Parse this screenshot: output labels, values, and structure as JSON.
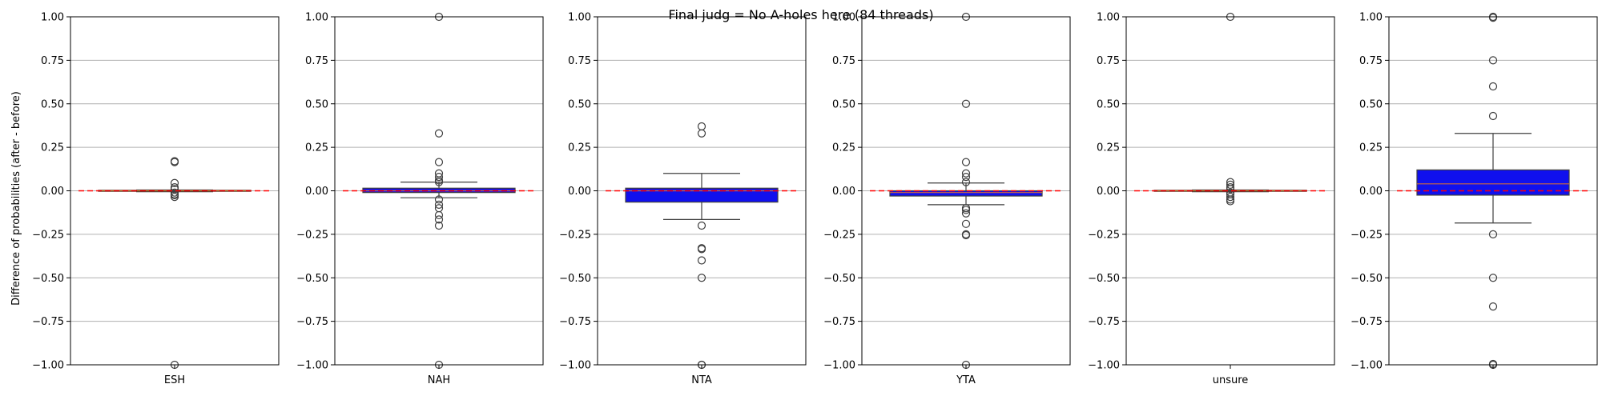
{
  "chart_data": {
    "type": "box",
    "title": "Final judg = No A-holes here (84 threads)",
    "ylabel": "Difference of probabilities (after - before)",
    "ylim": [
      -1,
      1
    ],
    "yticks": [
      -1,
      -0.75,
      -0.5,
      -0.25,
      0,
      0.25,
      0.5,
      0.75,
      1
    ],
    "ytick_labels": [
      "−1.00",
      "−0.75",
      "−0.50",
      "−0.25",
      "0.00",
      "0.25",
      "0.50",
      "0.75",
      "1.00"
    ],
    "grid": "horizontal",
    "reference_line": {
      "y": 0,
      "style": "dashed",
      "color": "#ff0000"
    },
    "box_color": "#1010ee",
    "median_color": "#ff7f0e",
    "panels": [
      {
        "category": "ESH",
        "q1": -0.003,
        "median": 0,
        "q3": 0.003,
        "whisker_low": -0.005,
        "whisker_high": 0.005,
        "outliers": [
          0.17,
          0.165,
          0.045,
          0.02,
          0.01,
          -0.01,
          -0.02,
          -0.025,
          -0.035,
          -1.0
        ]
      },
      {
        "category": "NAH",
        "q1": -0.01,
        "median": 0,
        "q3": 0.015,
        "whisker_low": -0.04,
        "whisker_high": 0.05,
        "outliers": [
          1.0,
          0.33,
          0.165,
          0.1,
          0.08,
          0.06,
          0.05,
          -0.05,
          -0.08,
          -0.1,
          -0.14,
          -0.165,
          -0.2,
          -1.0
        ]
      },
      {
        "category": "NTA",
        "q1": -0.065,
        "median": 0,
        "q3": 0.015,
        "whisker_low": -0.165,
        "whisker_high": 0.1,
        "outliers": [
          0.37,
          0.33,
          -0.2,
          -0.33,
          -0.335,
          -0.4,
          -0.5,
          -1.0,
          -1.0
        ]
      },
      {
        "category": "YTA",
        "q1": -0.03,
        "median": -0.01,
        "q3": 0.0,
        "whisker_low": -0.08,
        "whisker_high": 0.045,
        "outliers": [
          1.0,
          0.5,
          0.165,
          0.1,
          0.08,
          0.05,
          -0.1,
          -0.11,
          -0.13,
          -0.19,
          -0.25,
          -0.255,
          -1.0
        ]
      },
      {
        "category": "unsure",
        "q1": -0.003,
        "median": 0,
        "q3": 0.003,
        "whisker_low": -0.005,
        "whisker_high": 0.005,
        "outliers": [
          1.0,
          0.05,
          0.035,
          0.02,
          0.01,
          -0.01,
          -0.02,
          -0.035,
          -0.05,
          -0.06
        ]
      },
      {
        "category": "",
        "q1": -0.025,
        "median": 0.04,
        "q3": 0.12,
        "whisker_low": -0.185,
        "whisker_high": 0.33,
        "outliers": [
          1.0,
          0.995,
          0.75,
          0.6,
          0.43,
          -0.25,
          -0.5,
          -0.665,
          -1.0,
          -0.995
        ]
      }
    ]
  }
}
